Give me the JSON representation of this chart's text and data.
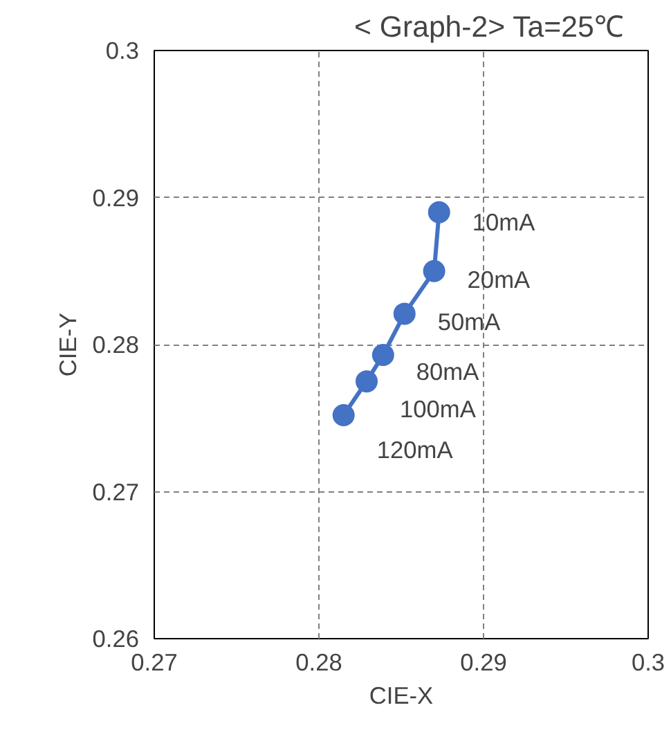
{
  "chart_data": {
    "type": "line",
    "title": "< Graph-2>    Ta=25℃",
    "xlabel": "CIE-X",
    "ylabel": "CIE-Y",
    "x": [
      0.2873,
      0.287,
      0.2852,
      0.2839,
      0.2829,
      0.2815
    ],
    "series": [
      {
        "color": "#4472c4",
        "values": [
          0.289,
          0.285,
          0.2821,
          0.2793,
          0.2775,
          0.2752
        ]
      }
    ],
    "xlim": [
      0.27,
      0.3
    ],
    "xticks": [
      0.27,
      0.28,
      0.29,
      0.3
    ],
    "ylim": [
      0.26,
      0.3
    ],
    "yticks": [
      0.26,
      0.27,
      0.28,
      0.29,
      0.3
    ],
    "grid": true,
    "marker": "circle",
    "line_style": "solid",
    "annotations": [
      {
        "text": "10mA",
        "x": 0.2873,
        "y": 0.289
      },
      {
        "text": "20mA",
        "x": 0.287,
        "y": 0.285
      },
      {
        "text": "50mA",
        "x": 0.2852,
        "y": 0.2821
      },
      {
        "text": "80mA",
        "x": 0.2839,
        "y": 0.2793
      },
      {
        "text": "100mA",
        "x": 0.2829,
        "y": 0.2775
      },
      {
        "text": "120mA",
        "x": 0.2815,
        "y": 0.2752
      }
    ]
  }
}
